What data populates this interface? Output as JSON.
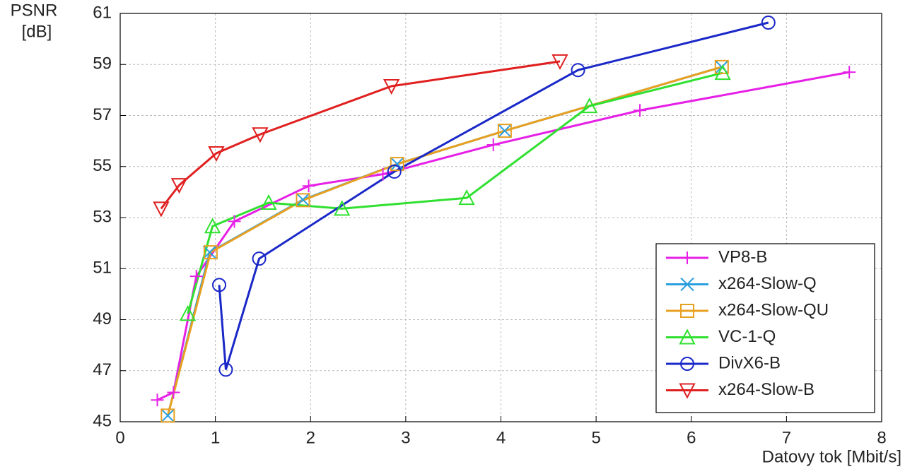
{
  "chart_data": {
    "type": "line",
    "ylabel": [
      "PSNR",
      "[dB]"
    ],
    "xlabel": "Datovy tok [Mbit/s]",
    "xlim": [
      0,
      8
    ],
    "xticks": [
      0,
      1,
      2,
      3,
      4,
      5,
      6,
      7,
      8
    ],
    "ylim": [
      45,
      61
    ],
    "yticks": [
      45,
      47,
      49,
      51,
      53,
      55,
      57,
      59,
      61
    ],
    "grid": true,
    "legend": "lower right",
    "series": [
      {
        "name": "VP8-B",
        "color": "#e620e6",
        "marker": "plus",
        "x": [
          0.39,
          0.56,
          0.8,
          1.2,
          1.98,
          2.76,
          3.92,
          5.46,
          7.66
        ],
        "values": [
          45.85,
          46.15,
          50.7,
          52.85,
          54.24,
          54.7,
          55.85,
          57.2,
          58.7
        ]
      },
      {
        "name": "x264-Slow-Q",
        "color": "#2a9fe0",
        "marker": "x",
        "x": [
          0.5,
          0.94,
          1.92,
          2.91,
          4.04,
          6.32
        ],
        "values": [
          45.24,
          51.64,
          53.7,
          55.1,
          56.4,
          58.9
        ]
      },
      {
        "name": "x264-Slow-QU",
        "color": "#e8a020",
        "marker": "square",
        "x": [
          0.5,
          0.95,
          1.92,
          2.91,
          4.04,
          6.32
        ],
        "values": [
          45.24,
          51.64,
          53.68,
          55.1,
          56.4,
          58.9
        ]
      },
      {
        "name": "VC-1-Q",
        "color": "#30e030",
        "marker": "triangle-up",
        "x": [
          0.71,
          0.97,
          1.56,
          2.33,
          3.64,
          4.93,
          6.33
        ],
        "values": [
          49.23,
          52.66,
          53.58,
          53.35,
          53.77,
          57.37,
          58.67
        ]
      },
      {
        "name": "DivX6-B",
        "color": "#1a28c8",
        "marker": "circle",
        "x": [
          1.04,
          1.11,
          1.46,
          2.88,
          4.81,
          6.81
        ],
        "values": [
          50.36,
          47.04,
          51.39,
          54.8,
          58.78,
          60.64
        ]
      },
      {
        "name": "x264-Slow-B",
        "color": "#e02020",
        "marker": "triangle-down",
        "x": [
          0.43,
          0.62,
          1.01,
          1.47,
          2.85,
          4.62
        ],
        "values": [
          53.35,
          54.27,
          55.52,
          56.26,
          58.15,
          59.12
        ]
      }
    ]
  }
}
